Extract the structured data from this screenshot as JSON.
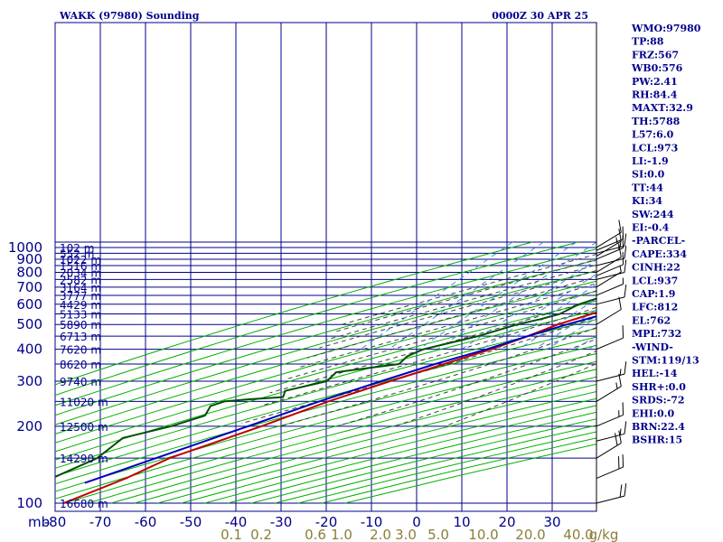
{
  "header": {
    "station": "WAKK (97980) Sounding",
    "datetime": "0000Z 30 APR 25"
  },
  "indices": [
    "WMO:97980",
    "TP:88",
    "FRZ:567",
    "WB0:576",
    "PW:2.41",
    "RH:84.4",
    "MAXT:32.9",
    "TH:5788",
    "L57:6.0",
    "LCL:973",
    "LI:-1.9",
    "SI:0.0",
    "TT:44",
    "KI:34",
    "SW:244",
    "EI:-0.4",
    "-PARCEL-",
    "CAPE:334",
    "CINH:22",
    "LCL:937",
    "CAP:1.9",
    "LFC:812",
    "EL:762",
    "MPL:732",
    "-WIND-",
    "STM:119/13",
    "HEL:-14",
    "SHR+:0.0",
    "SRDS:-72",
    "EHI:0.0",
    "BRN:22.4",
    "BSHR:15"
  ],
  "colors": {
    "grid": "#00008b",
    "dry_adiabat": "#00b000",
    "moist_adiabat": "#404040",
    "mixing_ratio": "#3c8cdc",
    "temperature": "#c00000",
    "dewpoint": "#005000",
    "parcel": "#0000c0",
    "mixing_label": "#8b7d3a",
    "wind_barb": "#000000"
  },
  "chart_data": {
    "type": "line",
    "title": "WAKK (97980) Sounding",
    "subtitle": "0000Z 30 APR 25",
    "diagram": "skew-T log-p",
    "pressure_unit_label": "mb",
    "pressure_ticks": [
      "100",
      "200",
      "300",
      "400",
      "500",
      "600",
      "700",
      "800",
      "900",
      "1000"
    ],
    "pressure_ylim": [
      1050,
      100
    ],
    "temperature_ticks": [
      "-80",
      "-70",
      "-60",
      "-50",
      "-40",
      "-30",
      "-20",
      "-10",
      "0",
      "10",
      "20",
      "30"
    ],
    "temperature_xlim": [
      -80,
      40
    ],
    "mixing_ratio_ticks": [
      "0.1",
      "0.2",
      "0.6",
      "1.0",
      "2.0",
      "3.0",
      "5.0",
      "10.0",
      "20.0",
      "40.0",
      "g/kg"
    ],
    "height_labels": [
      {
        "p": 100,
        "label": "16680 m"
      },
      {
        "p": 150,
        "label": "14290 m"
      },
      {
        "p": 200,
        "label": "12500 m"
      },
      {
        "p": 250,
        "label": "11020 m"
      },
      {
        "p": 300,
        "label": "9740 m"
      },
      {
        "p": 350,
        "label": "8620 m"
      },
      {
        "p": 400,
        "label": "7620 m"
      },
      {
        "p": 450,
        "label": "6713 m"
      },
      {
        "p": 500,
        "label": "5890 m"
      },
      {
        "p": 550,
        "label": "5133 m"
      },
      {
        "p": 600,
        "label": "4429 m"
      },
      {
        "p": 650,
        "label": "3777 m"
      },
      {
        "p": 700,
        "label": "3164 m"
      },
      {
        "p": 750,
        "label": "2582 m"
      },
      {
        "p": 800,
        "label": "2034 m"
      },
      {
        "p": 850,
        "label": "1516 m"
      },
      {
        "p": 900,
        "label": "1022 m"
      },
      {
        "p": 950,
        "label": "552 m"
      },
      {
        "p": 1000,
        "label": "102 m"
      }
    ],
    "series": [
      {
        "name": "temperature",
        "points": [
          [
            1009,
            25.8
          ],
          [
            1000,
            25.0
          ],
          [
            975,
            22.0
          ],
          [
            950,
            20.0
          ],
          [
            925,
            18.5
          ],
          [
            900,
            17.0
          ],
          [
            875,
            16.0
          ],
          [
            850,
            15.0
          ],
          [
            800,
            12.0
          ],
          [
            775,
            11.0
          ],
          [
            750,
            9.0
          ],
          [
            700,
            6.0
          ],
          [
            650,
            2.0
          ],
          [
            600,
            -2.0
          ],
          [
            550,
            -7.0
          ],
          [
            500,
            -12.0
          ],
          [
            450,
            -16.0
          ],
          [
            400,
            -21.0
          ],
          [
            350,
            -28.0
          ],
          [
            300,
            -36.0
          ],
          [
            250,
            -45.0
          ],
          [
            200,
            -54.0
          ],
          [
            150,
            -67.0
          ],
          [
            125,
            -72.0
          ],
          [
            100,
            -80.0
          ]
        ]
      },
      {
        "name": "dewpoint",
        "points": [
          [
            1009,
            24.5
          ],
          [
            1000,
            22.0
          ],
          [
            975,
            20.0
          ],
          [
            950,
            18.0
          ],
          [
            925,
            16.5
          ],
          [
            900,
            15.0
          ],
          [
            850,
            12.0
          ],
          [
            800,
            8.0
          ],
          [
            775,
            7.0
          ],
          [
            750,
            0.0
          ],
          [
            700,
            -4.0
          ],
          [
            650,
            -8.0
          ],
          [
            600,
            -12.0
          ],
          [
            550,
            -14.0
          ],
          [
            525,
            -17.0
          ],
          [
            500,
            -21.0
          ],
          [
            450,
            -27.0
          ],
          [
            400,
            -36.0
          ],
          [
            375,
            -38.0
          ],
          [
            350,
            -38.0
          ],
          [
            325,
            -50.0
          ],
          [
            300,
            -50.0
          ],
          [
            275,
            -57.0
          ],
          [
            260,
            -56.0
          ],
          [
            255,
            -63.0
          ],
          [
            250,
            -68.0
          ],
          [
            240,
            -70.0
          ],
          [
            220,
            -69.0
          ],
          [
            200,
            -74.0
          ],
          [
            180,
            -82.0
          ],
          [
            150,
            -83.0
          ],
          [
            100,
            -95.0
          ]
        ]
      },
      {
        "name": "parcel",
        "points": [
          [
            1009,
            26.0
          ],
          [
            937,
            18.5
          ],
          [
            900,
            18.0
          ],
          [
            850,
            16.5
          ],
          [
            800,
            14.5
          ],
          [
            750,
            11.5
          ],
          [
            700,
            7.5
          ],
          [
            650,
            4.0
          ],
          [
            600,
            0.0
          ],
          [
            550,
            -4.0
          ],
          [
            500,
            -10.0
          ],
          [
            450,
            -16.0
          ],
          [
            400,
            -22.0
          ],
          [
            350,
            -30.0
          ],
          [
            300,
            -38.0
          ],
          [
            250,
            -47.0
          ],
          [
            200,
            -57.0
          ],
          [
            150,
            -70.0
          ],
          [
            120,
            -80.0
          ]
        ]
      }
    ],
    "wind_barbs": [
      {
        "p": 1000,
        "speed_kt": 10
      },
      {
        "p": 975,
        "speed_kt": 10
      },
      {
        "p": 950,
        "speed_kt": 15
      },
      {
        "p": 925,
        "speed_kt": 15
      },
      {
        "p": 900,
        "speed_kt": 15
      },
      {
        "p": 850,
        "speed_kt": 10
      },
      {
        "p": 800,
        "speed_kt": 10
      },
      {
        "p": 775,
        "speed_kt": 10
      },
      {
        "p": 750,
        "speed_kt": 10
      },
      {
        "p": 700,
        "speed_kt": 5
      },
      {
        "p": 650,
        "speed_kt": 5
      },
      {
        "p": 600,
        "speed_kt": 10
      },
      {
        "p": 500,
        "speed_kt": 10
      },
      {
        "p": 400,
        "speed_kt": 10
      },
      {
        "p": 300,
        "speed_kt": 15
      },
      {
        "p": 250,
        "speed_kt": 15
      },
      {
        "p": 200,
        "speed_kt": 15
      },
      {
        "p": 175,
        "speed_kt": 15
      },
      {
        "p": 150,
        "speed_kt": 20
      },
      {
        "p": 125,
        "speed_kt": 20
      },
      {
        "p": 100,
        "speed_kt": 20
      }
    ]
  }
}
